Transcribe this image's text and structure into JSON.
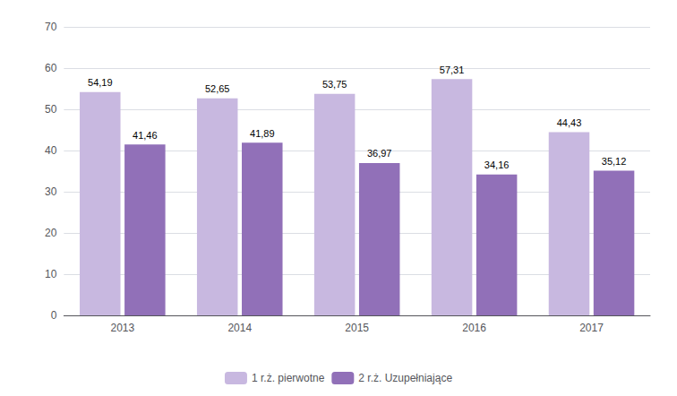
{
  "chart_data": {
    "type": "bar",
    "categories": [
      "2013",
      "2014",
      "2015",
      "2016",
      "2017"
    ],
    "series": [
      {
        "name": "1 r.ż. pierwotne",
        "color": "#c8b8e0",
        "values": [
          54.19,
          52.65,
          53.75,
          57.31,
          44.43
        ],
        "value_labels": [
          "54,19",
          "52,65",
          "53,75",
          "57,31",
          "44,43"
        ]
      },
      {
        "name": "2 r.ż. Uzupełniające",
        "color": "#9170b8",
        "values": [
          41.46,
          41.89,
          36.97,
          34.16,
          35.12
        ],
        "value_labels": [
          "41,46",
          "41,89",
          "36,97",
          "34,16",
          "35,12"
        ]
      }
    ],
    "ylim": [
      0,
      70
    ],
    "yticks": [
      0,
      10,
      20,
      30,
      40,
      50,
      60,
      70
    ],
    "grid": true,
    "legend": "bottom",
    "data_labels": true
  }
}
